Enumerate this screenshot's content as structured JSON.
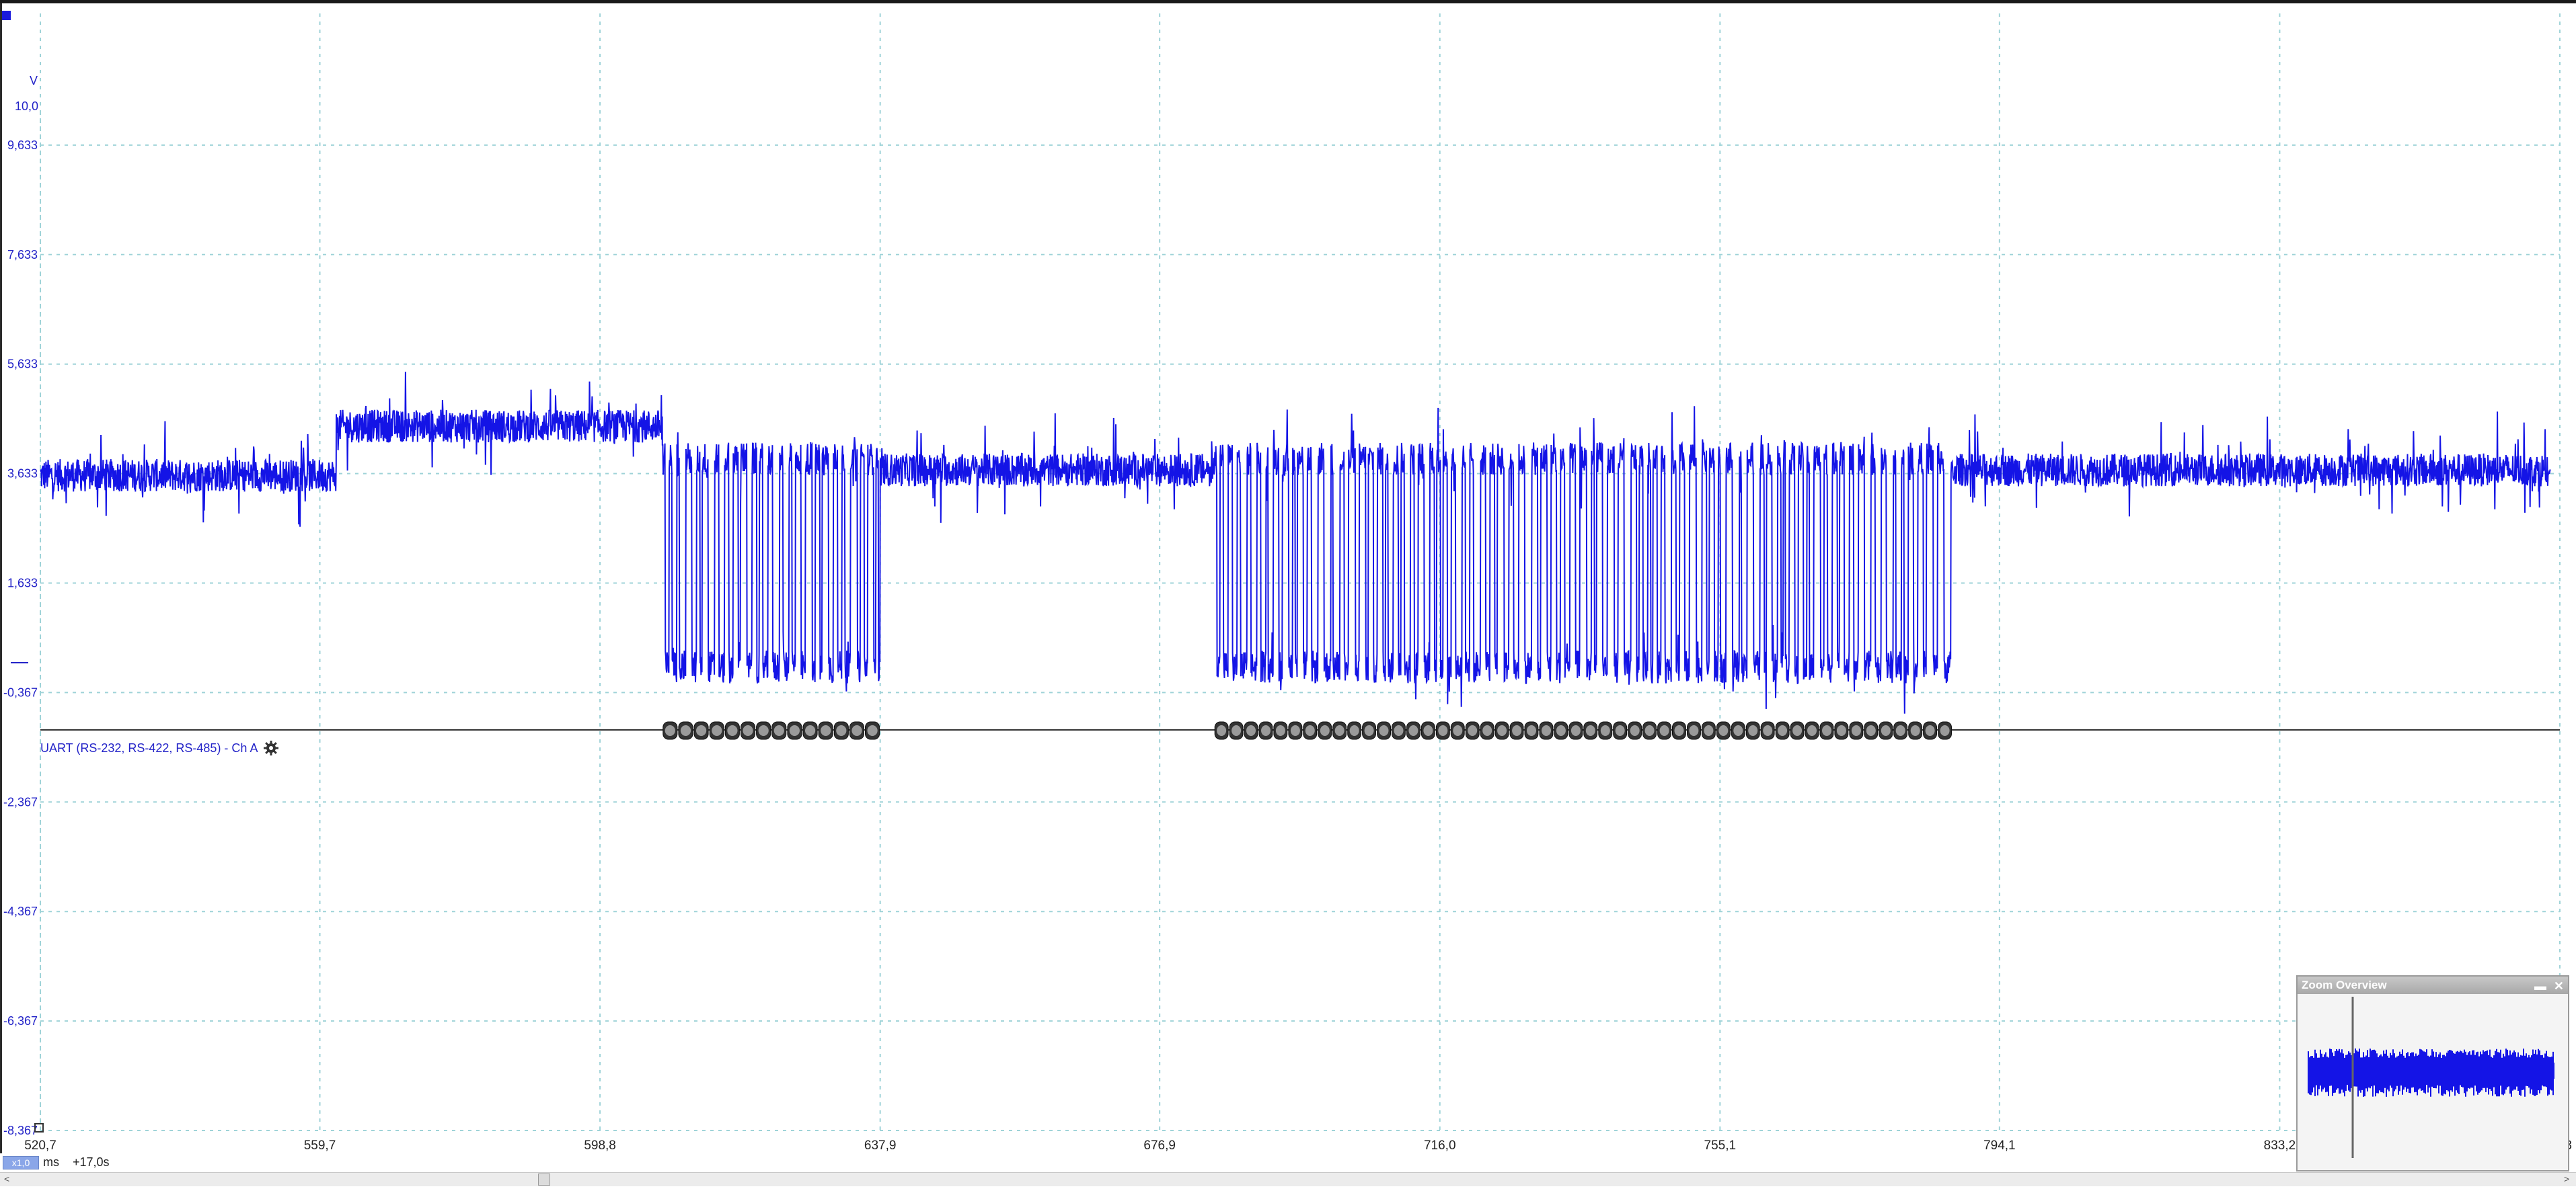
{
  "y_axis": {
    "unit": "V",
    "top_value": "10,0",
    "ticks": [
      "9,633",
      "7,633",
      "5,633",
      "3,633",
      "1,633",
      "-0,367",
      "-2,367",
      "-4,367",
      "-6,367",
      "-8,367"
    ]
  },
  "x_axis": {
    "ticks": [
      "520,7",
      "559,7",
      "598,8",
      "637,9",
      "676,9",
      "716,0",
      "755,1",
      "794,1",
      "833,2"
    ],
    "last_partial": "3",
    "unit": "ms",
    "offset": "+17,0s",
    "scale_badge": "x1,0"
  },
  "decoder": {
    "label": "UART (RS-232, RS-422, RS-485) - Ch A"
  },
  "zoom_overview": {
    "title": "Zoom Overview",
    "minimize_glyph": "▬",
    "close_glyph": "✕"
  },
  "chart_data": {
    "type": "line",
    "xlabel": "ms",
    "ylabel": "V",
    "xlim": [
      520.7,
      872.3
    ],
    "ylim": [
      -8.367,
      10.0
    ],
    "grid": true,
    "series": [
      {
        "color": "#1414e6",
        "segments": [
          {
            "x_start": 520.7,
            "x_end": 562.0,
            "level": 3.6
          },
          {
            "x_start": 562.0,
            "x_end": 607.5,
            "level": 4.5
          },
          {
            "x_start": 607.5,
            "x_end": 637.9,
            "level": "toggling 3.9 / 0.1"
          },
          {
            "x_start": 637.9,
            "x_end": 684.5,
            "level": 3.7
          },
          {
            "x_start": 684.5,
            "x_end": 787.5,
            "level": "toggling 3.9 / 0.1"
          },
          {
            "x_start": 787.5,
            "x_end": 871.0,
            "level": 3.7
          }
        ]
      }
    ],
    "decoded_packet_groups": [
      {
        "x_start": 607.5,
        "x_end": 637.9,
        "count": 14
      },
      {
        "x_start": 684.5,
        "x_end": 787.5,
        "count": 50
      }
    ]
  }
}
